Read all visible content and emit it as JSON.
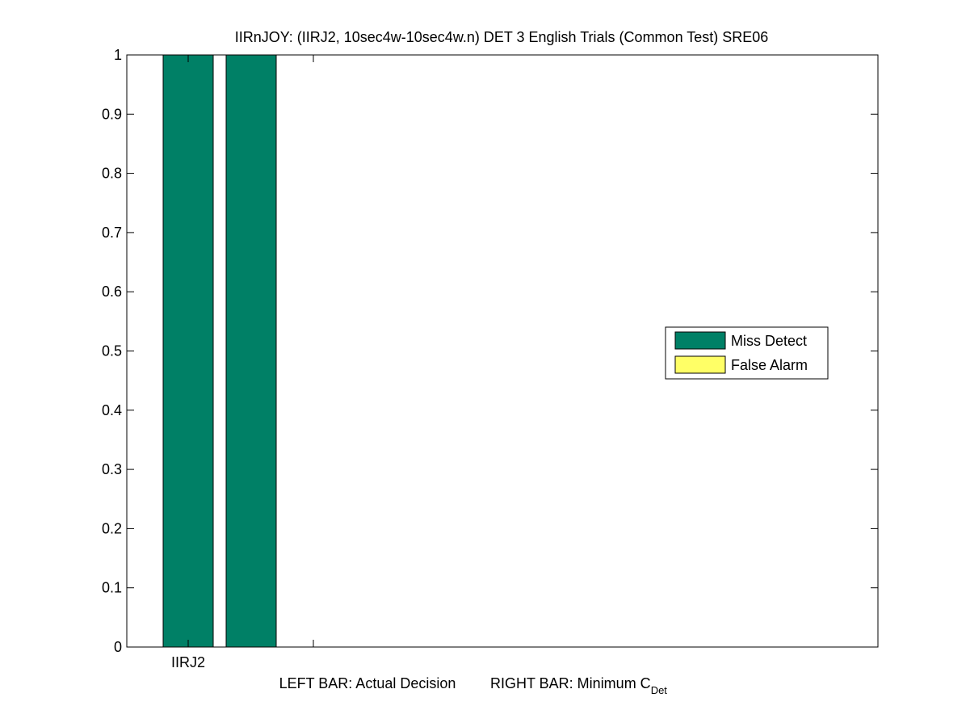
{
  "chart_data": {
    "type": "bar",
    "title": "IIRnJOY: (IIRJ2, 10sec4w-10sec4w.n) DET 3 English Trials (Common Test) SRE06",
    "categories": [
      "IIRJ2"
    ],
    "xlabel_left": "LEFT BAR: Actual Decision",
    "xlabel_right_main": "RIGHT BAR: Minimum C",
    "xlabel_right_sub": "Det",
    "ylabel": "",
    "ylim": [
      0,
      1
    ],
    "yticks": [
      "0",
      "0.1",
      "0.2",
      "0.3",
      "0.4",
      "0.5",
      "0.6",
      "0.7",
      "0.8",
      "0.9",
      "1"
    ],
    "stacked": true,
    "bars": [
      {
        "category": "IIRJ2",
        "position": "left",
        "miss_detect": 1.0,
        "false_alarm": 0.0
      },
      {
        "category": "IIRJ2",
        "position": "right",
        "miss_detect": 1.0,
        "false_alarm": 0.0
      }
    ],
    "series": [
      {
        "name": "Miss Detect",
        "color": "#008066"
      },
      {
        "name": "False Alarm",
        "color": "#ffff66"
      }
    ],
    "legend_position": "right-middle",
    "grid": false
  }
}
